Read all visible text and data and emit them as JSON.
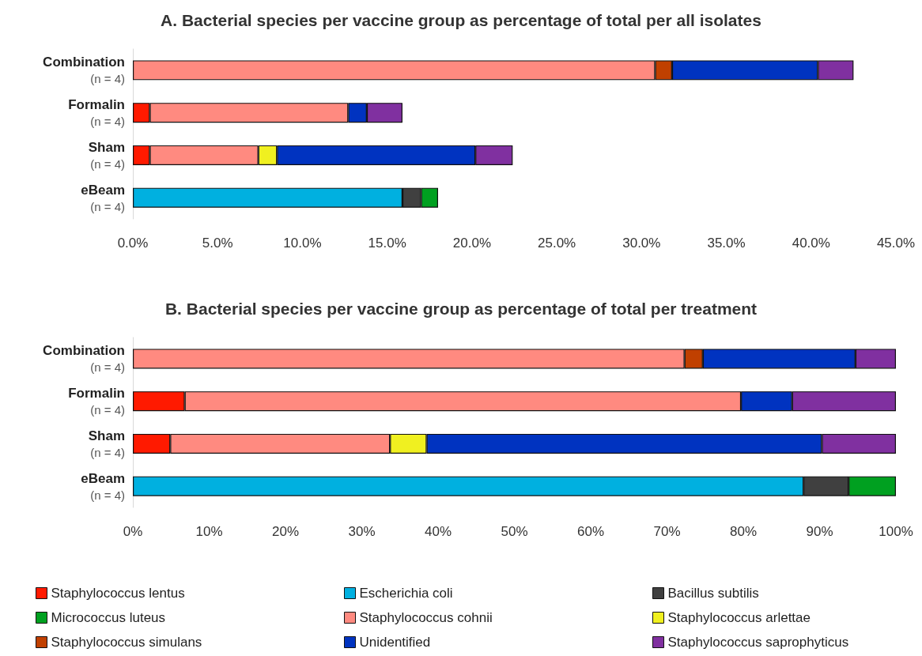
{
  "chart_data": [
    {
      "type": "bar",
      "title": "A. Bacterial species per vaccine group as percentage of total per all isolates",
      "orientation": "horizontal",
      "stacked": true,
      "grid": false,
      "legend": false,
      "categories": [
        "Combination\n(n = 4)",
        "Formalin\n(n = 4)",
        "Sham\n(n = 4)",
        "eBeam\n(n = 4)"
      ],
      "xlim": [
        0,
        45
      ],
      "xticks": [
        {
          "value": 0,
          "label": "0.0%"
        },
        {
          "value": 5,
          "label": "5.0%"
        },
        {
          "value": 10,
          "label": "10.0%"
        },
        {
          "value": 15,
          "label": "15.0%"
        },
        {
          "value": 20,
          "label": "20.0%"
        },
        {
          "value": 25,
          "label": "25.0%"
        },
        {
          "value": 30,
          "label": "30.0%"
        },
        {
          "value": 35,
          "label": "35.0%"
        },
        {
          "value": 40,
          "label": "40.0%"
        },
        {
          "value": 45,
          "label": "45.0%"
        }
      ],
      "series": [
        {
          "color": "#ff1a00",
          "values": [
            null,
            1.0,
            1.0,
            null
          ]
        },
        {
          "color": "#00b0e0",
          "values": [
            null,
            null,
            null,
            15.9
          ]
        },
        {
          "color": "#404040",
          "values": [
            null,
            null,
            null,
            1.1
          ]
        },
        {
          "color": "#00a020",
          "values": [
            null,
            null,
            null,
            1.0
          ]
        },
        {
          "color": "#ff8a80",
          "values": [
            30.8,
            11.7,
            6.4,
            null
          ]
        },
        {
          "color": "#f0f020",
          "values": [
            null,
            null,
            1.1,
            null
          ]
        },
        {
          "color": "#c04000",
          "values": [
            1.0,
            null,
            null,
            null
          ]
        },
        {
          "color": "#0033c0",
          "values": [
            8.6,
            1.1,
            11.7,
            null
          ]
        },
        {
          "color": "#8030a0",
          "values": [
            2.1,
            2.1,
            2.2,
            null
          ]
        }
      ]
    },
    {
      "type": "bar",
      "title": "B. Bacterial species per vaccine group as percentage of total per treatment",
      "orientation": "horizontal",
      "stacked": true,
      "grid": false,
      "legend": "bottom",
      "categories": [
        "Combination\n(n = 4)",
        "Formalin\n(n = 4)",
        "Sham\n(n = 4)",
        "eBeam\n(n = 4)"
      ],
      "xlim": [
        0,
        100
      ],
      "xticks": [
        {
          "value": 0,
          "label": "0%"
        },
        {
          "value": 10,
          "label": "10%"
        },
        {
          "value": 20,
          "label": "20%"
        },
        {
          "value": 30,
          "label": "30%"
        },
        {
          "value": 40,
          "label": "40%"
        },
        {
          "value": 50,
          "label": "50%"
        },
        {
          "value": 60,
          "label": "60%"
        },
        {
          "value": 70,
          "label": "70%"
        },
        {
          "value": 80,
          "label": "80%"
        },
        {
          "value": 90,
          "label": "90%"
        },
        {
          "value": 100,
          "label": "100%"
        }
      ],
      "series": [
        {
          "name": "Staphylococcus lentus",
          "color": "#ff1a00",
          "values": [
            null,
            6.8,
            4.9,
            null
          ]
        },
        {
          "name": "Escherichia coli",
          "color": "#00b0e0",
          "values": [
            null,
            null,
            null,
            87.9
          ]
        },
        {
          "name": "Bacillus subtilis",
          "color": "#404040",
          "values": [
            null,
            null,
            null,
            5.9
          ]
        },
        {
          "name": "Micrococcus luteus",
          "color": "#00a020",
          "values": [
            null,
            null,
            null,
            6.2
          ]
        },
        {
          "name": "Staphylococcus cohnii",
          "color": "#ff8a80",
          "values": [
            72.3,
            72.9,
            28.8,
            null
          ]
        },
        {
          "name": "Staphylococcus arlettae",
          "color": "#f0f020",
          "values": [
            null,
            null,
            4.8,
            null
          ]
        },
        {
          "name": "Staphylococcus simulans",
          "color": "#c04000",
          "values": [
            2.4,
            null,
            null,
            null
          ]
        },
        {
          "name": "Unidentified",
          "color": "#0033c0",
          "values": [
            20.0,
            6.7,
            51.8,
            null
          ]
        },
        {
          "name": "Staphylococcus saprophyticus",
          "color": "#8030a0",
          "values": [
            5.3,
            13.6,
            9.7,
            null
          ]
        }
      ]
    }
  ]
}
